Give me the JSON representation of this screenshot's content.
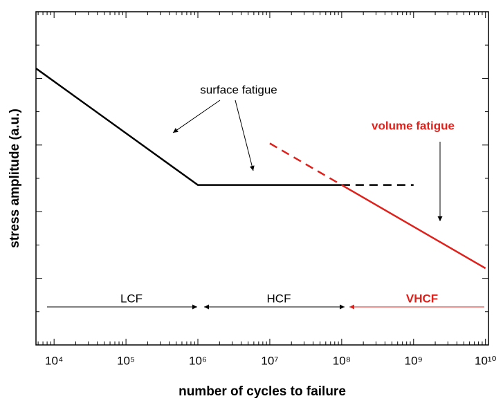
{
  "chart_data": {
    "type": "line",
    "xlabel": "number of cycles to failure",
    "ylabel": "stress amplitude (a.u.)",
    "xscale": "log",
    "xlim": [
      5600,
      11000000000
    ],
    "ylim": [
      0,
      10
    ],
    "xticks": [
      {
        "value": 10000,
        "label": "10⁴"
      },
      {
        "value": 100000,
        "label": "10⁵"
      },
      {
        "value": 1000000,
        "label": "10⁶"
      },
      {
        "value": 10000000,
        "label": "10⁷"
      },
      {
        "value": 100000000,
        "label": "10⁸"
      },
      {
        "value": 1000000000,
        "label": "10⁹"
      },
      {
        "value": 10000000000,
        "label": "10¹⁰"
      }
    ],
    "yticks": [
      1,
      2,
      3,
      4,
      5,
      6,
      7,
      8,
      9
    ],
    "series": [
      {
        "x": [
          5600,
          1000000,
          100000000
        ],
        "values": [
          8.3,
          4.8,
          4.8
        ],
        "color": "#000000",
        "style": "solid"
      },
      {
        "x": [
          100000000,
          1000000000
        ],
        "values": [
          4.8,
          4.8
        ],
        "color": "#000000",
        "style": "dashed"
      },
      {
        "x": [
          100000000,
          10000000000
        ],
        "values": [
          4.8,
          2.3
        ],
        "color": "#e0201b",
        "style": "solid"
      },
      {
        "x": [
          10000000,
          100000000
        ],
        "values": [
          6.05,
          4.8
        ],
        "color": "#e0201b",
        "style": "dashed"
      }
    ],
    "annotations": {
      "surface": "surface fatigue",
      "volume": "volume fatigue",
      "lcf": "LCF",
      "hcf": "HCF",
      "vhcf": "VHCF"
    }
  }
}
